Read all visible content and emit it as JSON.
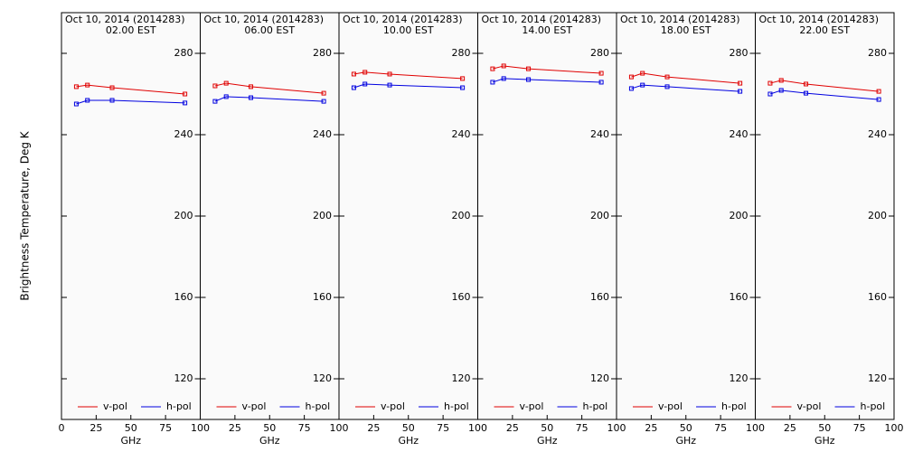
{
  "chart_data": [
    {
      "type": "line",
      "title": "Oct 10, 2014 (2014283)",
      "subtitle": "02.00 EST",
      "xlabel": "GHz",
      "ylabel": "Brightness Temperature, Deg K",
      "xlim": [
        0,
        100
      ],
      "xticks": [
        0,
        25,
        50,
        75,
        100
      ],
      "ylim": [
        100,
        300
      ],
      "yticks": [
        120,
        160,
        200,
        240,
        280
      ],
      "x": [
        10.7,
        18.7,
        36.5,
        89
      ],
      "series": [
        {
          "name": "v-pol",
          "color": "#e00000",
          "values": [
            263.6,
            264.4,
            263.1,
            260
          ]
        },
        {
          "name": "h-pol",
          "color": "#0000e0",
          "values": [
            255.1,
            256.9,
            256.9,
            255.6
          ]
        }
      ]
    },
    {
      "type": "line",
      "title": "Oct 10, 2014 (2014283)",
      "subtitle": "06.00 EST",
      "xlabel": "GHz",
      "xlim": [
        0,
        100
      ],
      "xticks": [
        25,
        50,
        75,
        100
      ],
      "ylim": [
        100,
        300
      ],
      "yticks": [
        120,
        160,
        200,
        240,
        280
      ],
      "x": [
        10.7,
        18.7,
        36.5,
        89
      ],
      "series": [
        {
          "name": "v-pol",
          "color": "#e00000",
          "values": [
            264,
            265.3,
            263.6,
            260.4
          ]
        },
        {
          "name": "h-pol",
          "color": "#0000e0",
          "values": [
            256.4,
            258.7,
            258.2,
            256.4
          ]
        }
      ]
    },
    {
      "type": "line",
      "title": "Oct 10, 2014 (2014283)",
      "subtitle": "10.00 EST",
      "xlabel": "GHz",
      "xlim": [
        0,
        100
      ],
      "xticks": [
        25,
        50,
        75,
        100
      ],
      "ylim": [
        100,
        300
      ],
      "yticks": [
        120,
        160,
        200,
        240,
        280
      ],
      "x": [
        10.7,
        18.7,
        36.5,
        89
      ],
      "series": [
        {
          "name": "v-pol",
          "color": "#e00000",
          "values": [
            269.8,
            270.7,
            269.8,
            267.6
          ]
        },
        {
          "name": "h-pol",
          "color": "#0000e0",
          "values": [
            263.1,
            264.9,
            264.4,
            263.1
          ]
        }
      ]
    },
    {
      "type": "line",
      "title": "Oct 10, 2014 (2014283)",
      "subtitle": "14.00 EST",
      "xlabel": "GHz",
      "xlim": [
        0,
        100
      ],
      "xticks": [
        25,
        50,
        75,
        100
      ],
      "ylim": [
        100,
        300
      ],
      "yticks": [
        120,
        160,
        200,
        240,
        280
      ],
      "x": [
        10.7,
        18.7,
        36.5,
        89
      ],
      "series": [
        {
          "name": "v-pol",
          "color": "#e00000",
          "values": [
            272.4,
            273.8,
            272.4,
            270.2
          ]
        },
        {
          "name": "h-pol",
          "color": "#0000e0",
          "values": [
            265.8,
            267.6,
            267.1,
            265.8
          ]
        }
      ]
    },
    {
      "type": "line",
      "title": "Oct 10, 2014 (2014283)",
      "subtitle": "18.00 EST",
      "xlabel": "GHz",
      "xlim": [
        0,
        100
      ],
      "xticks": [
        25,
        50,
        75,
        100
      ],
      "ylim": [
        100,
        300
      ],
      "yticks": [
        120,
        160,
        200,
        240,
        280
      ],
      "x": [
        10.7,
        18.7,
        36.5,
        89
      ],
      "series": [
        {
          "name": "v-pol",
          "color": "#e00000",
          "values": [
            268.4,
            270.2,
            268.4,
            265.3
          ]
        },
        {
          "name": "h-pol",
          "color": "#0000e0",
          "values": [
            262.7,
            264.4,
            263.6,
            261.3
          ]
        }
      ]
    },
    {
      "type": "line",
      "title": "Oct 10, 2014 (2014283)",
      "subtitle": "22.00 EST",
      "xlabel": "GHz",
      "xlim": [
        0,
        100
      ],
      "xticks": [
        25,
        50,
        75,
        100
      ],
      "ylim": [
        100,
        300
      ],
      "yticks": [
        120,
        160,
        200,
        240,
        280
      ],
      "x": [
        10.7,
        18.7,
        36.5,
        89
      ],
      "series": [
        {
          "name": "v-pol",
          "color": "#e00000",
          "values": [
            265.3,
            266.7,
            264.9,
            261.3
          ]
        },
        {
          "name": "h-pol",
          "color": "#0000e0",
          "values": [
            260,
            261.8,
            260.4,
            257.3
          ]
        }
      ]
    }
  ]
}
